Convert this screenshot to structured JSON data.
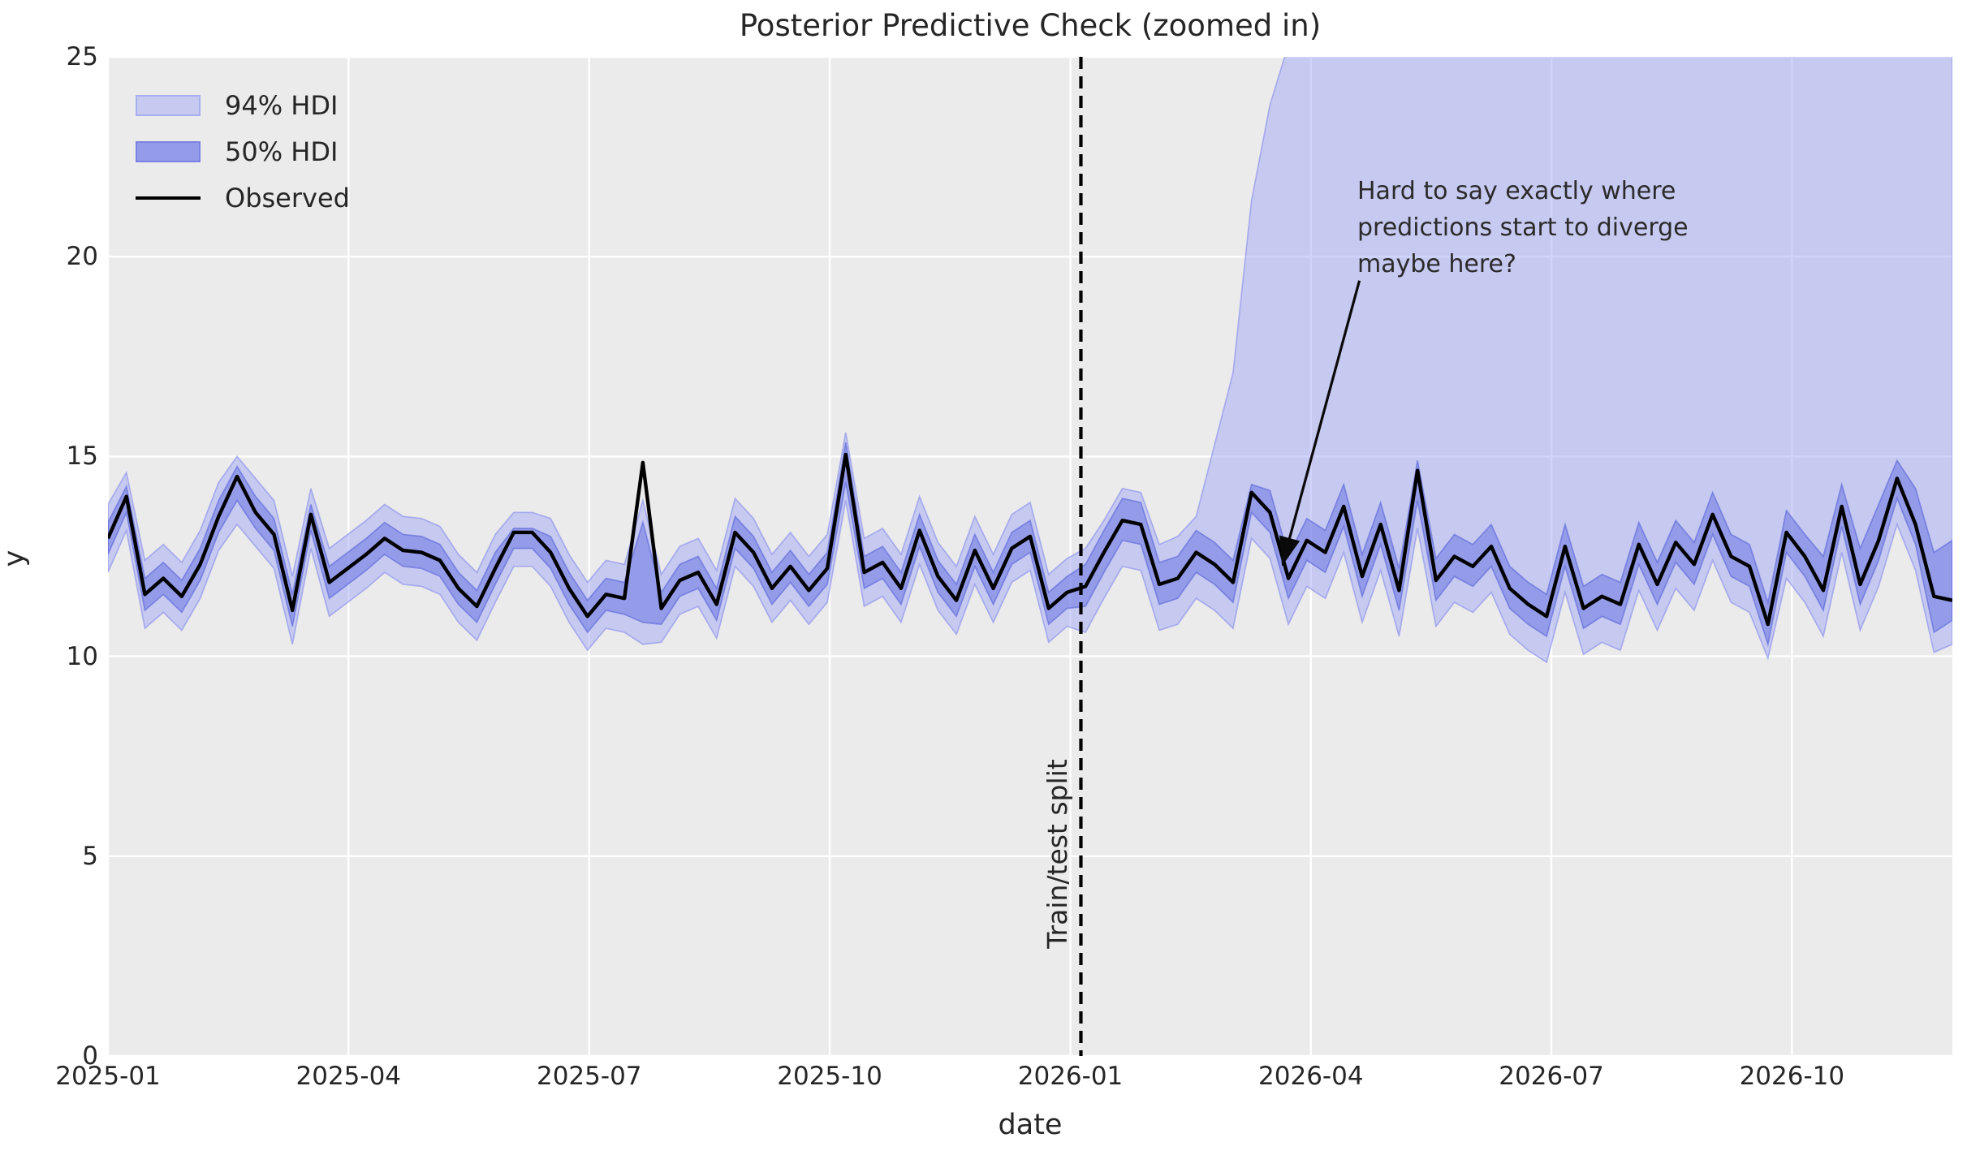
{
  "figure": {
    "title": "Posterior Predictive Check (zoomed in)",
    "xlabel": "date",
    "ylabel": "y"
  },
  "legend": {
    "items": [
      {
        "label": "94% HDI",
        "type": "patch",
        "fill": "#c6c9f0",
        "edge": "#a9aeee"
      },
      {
        "label": "50% HDI",
        "type": "patch",
        "fill": "#949be8",
        "edge": "#7a82e2"
      },
      {
        "label": "Observed",
        "type": "line",
        "color": "#000000"
      }
    ]
  },
  "annotations": {
    "split_label": "Train/test split",
    "note_lines": [
      "Hard to say exactly where",
      "predictions start to diverge",
      "maybe here?"
    ],
    "arrow": {
      "from_week": 67.85,
      "from_y": 19.4,
      "to_week": 63.65,
      "to_y": 12.25
    }
  },
  "colors": {
    "page_bg": "#ffffff",
    "plot_bg": "#ebebeb",
    "grid": "#ffffff",
    "hdi94_fill": "rgba(161,167,245,0.5)",
    "hdi94_edge": "rgba(125,133,235,0.55)",
    "hdi50_fill": "rgba(98,109,224,0.5)",
    "hdi50_edge": "rgba(80,92,215,0.55)",
    "observed": "#000000",
    "split_line": "#000000",
    "text": "#262626"
  },
  "chart_data": {
    "type": "line",
    "description": "Posterior predictive time series with 94% and 50% HDI bands, weekly points from 2025-01 to late 2026; vertical dashed train/test split at 2026-01; 94% HDI upper bound diverges above plot after the split",
    "x_unit": "weeks_from_2025-01-01",
    "ylim": [
      0,
      25
    ],
    "yticks": [
      0,
      5,
      10,
      15,
      20,
      25
    ],
    "ytick_labels": [
      "0",
      "5",
      "10",
      "15",
      "20",
      "25"
    ],
    "xticks": [
      {
        "label": "2025-01",
        "week": 0
      },
      {
        "label": "2025-04",
        "week": 13.04
      },
      {
        "label": "2025-07",
        "week": 26.09
      },
      {
        "label": "2025-10",
        "week": 39.13
      },
      {
        "label": "2026-01",
        "week": 52.18
      },
      {
        "label": "2026-04",
        "week": 65.22
      },
      {
        "label": "2026-07",
        "week": 78.26
      },
      {
        "label": "2026-10",
        "week": 91.3
      }
    ],
    "split_week": 52.75,
    "series": {
      "observed": [
        12.95,
        14.0,
        11.55,
        11.95,
        11.5,
        12.3,
        13.5,
        14.5,
        13.6,
        13.05,
        11.15,
        13.55,
        11.85,
        12.2,
        12.55,
        12.95,
        12.65,
        12.6,
        12.4,
        11.7,
        11.25,
        12.2,
        13.1,
        13.1,
        12.6,
        11.7,
        11.0,
        11.55,
        11.45,
        14.85,
        11.2,
        11.9,
        12.1,
        11.3,
        13.1,
        12.6,
        11.7,
        12.25,
        11.65,
        12.2,
        15.05,
        12.1,
        12.35,
        11.7,
        13.15,
        12.0,
        11.4,
        12.65,
        11.7,
        12.7,
        13.0,
        11.2,
        11.6,
        11.75,
        12.6,
        13.4,
        13.3,
        11.8,
        11.95,
        12.6,
        12.3,
        11.85,
        14.1,
        13.6,
        11.95,
        12.9,
        12.6,
        13.75,
        12.0,
        13.3,
        11.65,
        14.65,
        11.9,
        12.5,
        12.25,
        12.75,
        11.7,
        11.3,
        11.0,
        12.75,
        11.2,
        11.5,
        11.3,
        12.8,
        11.8,
        12.85,
        12.3,
        13.55,
        12.5,
        12.25,
        10.8,
        13.1,
        12.5,
        11.65,
        13.75,
        11.8,
        12.9,
        14.45,
        13.3,
        11.5,
        11.4
      ],
      "hdi94_upper": [
        13.8,
        14.6,
        12.4,
        12.8,
        12.35,
        13.15,
        14.35,
        15.0,
        14.45,
        13.9,
        12.0,
        14.2,
        12.7,
        13.05,
        13.4,
        13.8,
        13.5,
        13.45,
        13.25,
        12.55,
        12.1,
        13.05,
        13.6,
        13.6,
        13.45,
        12.55,
        11.85,
        12.4,
        12.3,
        13.9,
        12.05,
        12.75,
        12.95,
        12.15,
        13.95,
        13.45,
        12.55,
        13.1,
        12.5,
        13.05,
        15.6,
        12.95,
        13.2,
        12.55,
        14.0,
        12.85,
        12.25,
        13.5,
        12.55,
        13.55,
        13.85,
        12.05,
        12.45,
        12.7,
        13.4,
        14.2,
        14.1,
        12.8,
        13.0,
        13.5,
        15.3,
        17.1,
        21.4,
        23.8,
        25.3,
        26,
        26,
        26,
        26,
        26,
        26,
        26,
        26,
        26,
        26,
        26,
        26,
        26,
        26,
        26,
        26,
        26,
        26,
        26,
        26,
        26,
        26,
        26,
        26,
        26,
        26,
        26,
        26,
        26,
        26,
        26,
        26,
        26,
        26,
        26,
        26
      ],
      "hdi94_lower": [
        12.1,
        13.15,
        10.7,
        11.1,
        10.65,
        11.45,
        12.65,
        13.3,
        12.75,
        12.2,
        10.3,
        12.7,
        11.0,
        11.35,
        11.7,
        12.1,
        11.8,
        11.75,
        11.55,
        10.85,
        10.4,
        11.35,
        12.25,
        12.25,
        11.75,
        10.85,
        10.15,
        10.7,
        10.6,
        10.3,
        10.35,
        11.05,
        11.25,
        10.45,
        12.25,
        11.75,
        10.85,
        11.4,
        10.8,
        11.35,
        13.9,
        11.25,
        11.5,
        10.85,
        12.3,
        11.15,
        10.55,
        11.8,
        10.85,
        11.85,
        12.15,
        10.35,
        10.75,
        10.6,
        11.45,
        12.25,
        12.15,
        10.65,
        10.8,
        11.45,
        11.15,
        10.7,
        12.95,
        12.45,
        10.8,
        11.75,
        11.45,
        12.6,
        10.85,
        12.15,
        10.5,
        13.2,
        10.75,
        11.35,
        11.1,
        11.6,
        10.55,
        10.15,
        9.85,
        11.6,
        10.05,
        10.35,
        10.15,
        11.65,
        10.65,
        11.7,
        11.15,
        12.4,
        11.35,
        11.1,
        9.95,
        11.95,
        11.35,
        10.5,
        12.6,
        10.65,
        11.75,
        13.3,
        12.15,
        10.1,
        10.3
      ],
      "hdi50_upper": [
        13.35,
        14.25,
        11.95,
        12.35,
        11.9,
        12.7,
        13.9,
        14.75,
        14.0,
        13.45,
        11.55,
        13.8,
        12.25,
        12.6,
        12.95,
        13.35,
        13.05,
        13.0,
        12.8,
        12.1,
        11.65,
        12.6,
        13.2,
        13.2,
        13.0,
        12.1,
        11.4,
        11.95,
        11.85,
        13.35,
        11.6,
        12.3,
        12.5,
        11.7,
        13.5,
        13.0,
        12.1,
        12.65,
        12.05,
        12.6,
        15.35,
        12.5,
        12.75,
        12.1,
        13.55,
        12.4,
        11.8,
        13.05,
        12.1,
        13.1,
        13.4,
        11.6,
        12.0,
        12.3,
        13.15,
        13.95,
        13.85,
        12.35,
        12.5,
        13.15,
        12.85,
        12.4,
        14.3,
        14.15,
        12.5,
        13.45,
        13.15,
        14.3,
        12.55,
        13.85,
        12.2,
        14.9,
        12.45,
        13.05,
        12.8,
        13.3,
        12.25,
        11.85,
        11.55,
        13.3,
        11.75,
        12.05,
        11.85,
        13.35,
        12.35,
        13.4,
        12.85,
        14.1,
        13.05,
        12.8,
        11.35,
        13.65,
        13.05,
        12.5,
        14.3,
        12.7,
        13.8,
        14.9,
        14.2,
        12.6,
        12.9
      ],
      "hdi50_lower": [
        12.55,
        13.6,
        11.15,
        11.55,
        11.1,
        11.9,
        13.1,
        13.9,
        13.2,
        12.65,
        10.75,
        13.15,
        11.45,
        11.8,
        12.15,
        12.55,
        12.25,
        12.2,
        12.0,
        11.3,
        10.85,
        11.8,
        12.7,
        12.7,
        12.2,
        11.3,
        10.6,
        11.15,
        11.05,
        10.85,
        10.8,
        11.5,
        11.7,
        10.9,
        12.7,
        12.2,
        11.3,
        11.85,
        11.25,
        11.8,
        14.35,
        11.7,
        11.95,
        11.3,
        12.75,
        11.6,
        11.0,
        12.25,
        11.3,
        12.3,
        12.6,
        10.8,
        11.2,
        11.25,
        12.1,
        12.9,
        12.8,
        11.3,
        11.45,
        12.1,
        11.8,
        11.35,
        13.6,
        13.1,
        11.45,
        12.4,
        12.1,
        13.25,
        11.5,
        12.8,
        11.15,
        13.9,
        11.4,
        12.0,
        11.75,
        12.25,
        11.2,
        10.8,
        10.5,
        12.25,
        10.7,
        11.0,
        10.8,
        12.3,
        11.3,
        12.35,
        11.8,
        13.05,
        12.0,
        11.75,
        10.3,
        12.6,
        12.0,
        11.15,
        13.25,
        11.3,
        12.4,
        13.95,
        12.8,
        10.6,
        10.9
      ]
    },
    "legend_entries": [
      "94% HDI",
      "50% HDI",
      "Observed"
    ],
    "legend_position": "upper left",
    "grid": true
  }
}
